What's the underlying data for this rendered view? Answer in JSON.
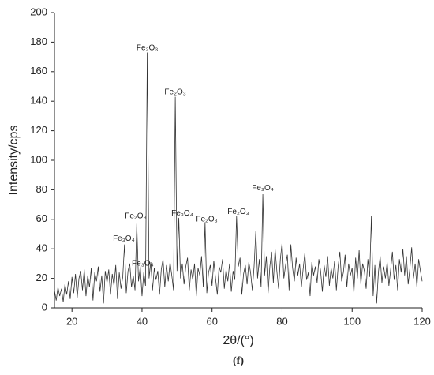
{
  "chart_data": {
    "type": "line",
    "color": "#333333",
    "xlabel": "2θ/(°)",
    "ylabel": "Intensity/cps",
    "caption": "(f)",
    "xlim": [
      15,
      120
    ],
    "xticks": [
      20,
      40,
      60,
      80,
      100,
      120
    ],
    "ylim": [
      0,
      200
    ],
    "yticks": [
      0,
      20,
      40,
      60,
      80,
      100,
      120,
      140,
      160,
      180,
      200
    ],
    "x": [
      15,
      15.5,
      16,
      16.5,
      17,
      17.5,
      18,
      18.5,
      19,
      19.5,
      20,
      20.5,
      21,
      21.5,
      22,
      22.5,
      23,
      23.5,
      24,
      24.5,
      25,
      25.5,
      26,
      26.5,
      27,
      27.5,
      28,
      28.5,
      29,
      29.5,
      30,
      30.5,
      31,
      31.5,
      32,
      32.5,
      33,
      33.5,
      34,
      34.5,
      35,
      35.5,
      36,
      36.5,
      37,
      37.5,
      38,
      38.5,
      39,
      39.5,
      40,
      40.5,
      41,
      41.5,
      42,
      42.5,
      43,
      43.5,
      44,
      44.5,
      45,
      45.5,
      46,
      46.5,
      47,
      47.5,
      48,
      48.5,
      49,
      49.5,
      50,
      50.5,
      51,
      51.5,
      52,
      52.5,
      53,
      53.5,
      54,
      54.5,
      55,
      55.5,
      56,
      56.5,
      57,
      57.5,
      58,
      58.5,
      59,
      59.5,
      60,
      60.5,
      61,
      61.5,
      62,
      62.5,
      63,
      63.5,
      64,
      64.5,
      65,
      65.5,
      66,
      66.5,
      67,
      67.5,
      68,
      68.5,
      69,
      69.5,
      70,
      70.5,
      71,
      71.5,
      72,
      72.5,
      73,
      73.5,
      74,
      74.5,
      75,
      75.5,
      76,
      76.5,
      77,
      77.5,
      78,
      78.5,
      79,
      79.5,
      80,
      80.5,
      81,
      81.5,
      82,
      82.5,
      83,
      83.5,
      84,
      84.5,
      85,
      85.5,
      86,
      86.5,
      87,
      87.5,
      88,
      88.5,
      89,
      89.5,
      90,
      90.5,
      91,
      91.5,
      92,
      92.5,
      93,
      93.5,
      94,
      94.5,
      95,
      95.5,
      96,
      96.5,
      97,
      97.5,
      98,
      98.5,
      99,
      99.5,
      100,
      100.5,
      101,
      101.5,
      102,
      102.5,
      103,
      103.5,
      104,
      104.5,
      105,
      105.5,
      106,
      106.5,
      107,
      107.5,
      108,
      108.5,
      109,
      109.5,
      110,
      110.5,
      111,
      111.5,
      112,
      112.5,
      113,
      113.5,
      114,
      114.5,
      115,
      115.5,
      116,
      116.5,
      117,
      117.5,
      118,
      118.5,
      119,
      119.5,
      120
    ],
    "values": [
      12,
      5,
      14,
      8,
      13,
      4,
      16,
      9,
      18,
      6,
      21,
      10,
      23,
      7,
      20,
      25,
      12,
      26,
      8,
      22,
      14,
      27,
      5,
      24,
      18,
      28,
      11,
      22,
      3,
      25,
      17,
      26,
      9,
      23,
      15,
      29,
      6,
      24,
      13,
      21,
      43,
      10,
      25,
      30,
      14,
      22,
      12,
      57,
      18,
      28,
      8,
      24,
      15,
      173,
      20,
      31,
      12,
      27,
      19,
      25,
      9,
      26,
      33,
      14,
      29,
      18,
      31,
      22,
      12,
      143,
      25,
      61,
      20,
      30,
      16,
      28,
      34,
      12,
      26,
      19,
      30,
      8,
      27,
      22,
      35,
      14,
      58,
      10,
      24,
      29,
      15,
      32,
      20,
      9,
      28,
      24,
      33,
      13,
      26,
      18,
      30,
      11,
      25,
      19,
      62,
      28,
      34,
      9,
      23,
      29,
      16,
      31,
      24,
      12,
      28,
      52,
      20,
      33,
      14,
      77,
      22,
      35,
      10,
      28,
      38,
      17,
      40,
      25,
      13,
      33,
      44,
      20,
      29,
      36,
      12,
      43,
      27,
      18,
      34,
      22,
      30,
      14,
      26,
      37,
      19,
      24,
      8,
      31,
      22,
      28,
      17,
      33,
      25,
      11,
      29,
      21,
      35,
      15,
      27,
      20,
      32,
      12,
      28,
      38,
      18,
      24,
      36,
      14,
      30,
      22,
      27,
      10,
      34,
      20,
      39,
      16,
      30,
      25,
      13,
      33,
      21,
      62,
      8,
      29,
      3,
      24,
      35,
      17,
      28,
      20,
      31,
      15,
      26,
      38,
      19,
      29,
      12,
      33,
      24,
      40,
      22,
      35,
      16,
      27,
      41,
      20,
      30,
      14,
      33,
      25,
      18
    ],
    "annotations": [
      {
        "text": "Fe₂O₃",
        "x": 41.5,
        "y": 176
      },
      {
        "text": "Fe₂O₃",
        "x": 49.5,
        "y": 146
      },
      {
        "text": "Fe₃O₄",
        "x": 51.5,
        "y": 64
      },
      {
        "text": "Fe₂O₃",
        "x": 58.5,
        "y": 60
      },
      {
        "text": "Fe₂O₃",
        "x": 67.5,
        "y": 65
      },
      {
        "text": "Fe₃O₄",
        "x": 74.5,
        "y": 81
      },
      {
        "text": "Fe₂O₃",
        "x": 38.2,
        "y": 62
      },
      {
        "text": "Fe₃O₄",
        "x": 34.8,
        "y": 47
      },
      {
        "text": "Fe₃O₄",
        "x": 40.2,
        "y": 30
      }
    ]
  }
}
